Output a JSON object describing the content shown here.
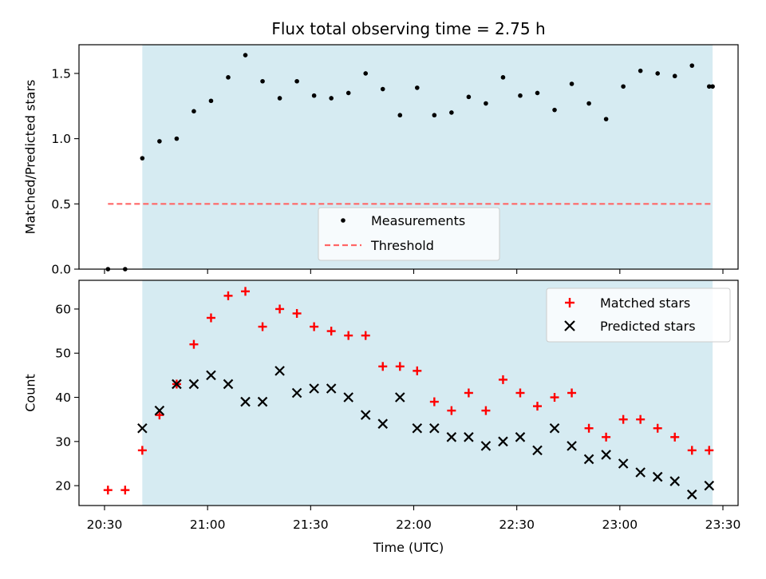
{
  "title": "Flux total observing time = 2.75 h",
  "colors": {
    "shade": "#add8e6",
    "measurement": "#000000",
    "threshold": "#ff6666",
    "matched": "#ff0000",
    "predicted": "#000000"
  },
  "chart_data": [
    {
      "type": "scatter",
      "name": "ratio-panel",
      "ylabel": "Matched/Predicted stars",
      "ylim": [
        0.0,
        1.72
      ],
      "xlim_minutes": [
        20.7,
        30.1
      ],
      "yticks": [
        {
          "v": 0.0,
          "label": "0.0"
        },
        {
          "v": 0.5,
          "label": "0.5"
        },
        {
          "v": 1.0,
          "label": "1.0"
        },
        {
          "v": 1.5,
          "label": "1.5"
        }
      ],
      "shaded_region": [
        "20:41",
        "23:27"
      ],
      "threshold": {
        "value": 0.5,
        "x": [
          "20:31",
          "23:27"
        ]
      },
      "legend": {
        "location": "lower-center",
        "entries": [
          {
            "label": "Measurements",
            "marker": "dot"
          },
          {
            "label": "Threshold",
            "marker": "dashed-line"
          }
        ]
      },
      "series": [
        {
          "name": "Measurements",
          "x": [
            "20:31",
            "20:36",
            "20:41",
            "20:46",
            "20:51",
            "20:56",
            "21:01",
            "21:06",
            "21:11",
            "21:16",
            "21:21",
            "21:26",
            "21:31",
            "21:36",
            "21:41",
            "21:46",
            "21:51",
            "21:56",
            "22:01",
            "22:06",
            "22:11",
            "22:16",
            "22:21",
            "22:26",
            "22:31",
            "22:36",
            "22:41",
            "22:46",
            "22:51",
            "22:56",
            "23:01",
            "23:06",
            "23:11",
            "23:16",
            "23:21",
            "23:26",
            "23:27"
          ],
          "y": [
            0.0,
            0.0,
            0.85,
            0.98,
            1.0,
            1.21,
            1.29,
            1.47,
            1.64,
            1.44,
            1.31,
            1.44,
            1.33,
            1.31,
            1.35,
            1.5,
            1.38,
            1.18,
            1.39,
            1.18,
            1.2,
            1.32,
            1.27,
            1.47,
            1.33,
            1.35,
            1.22,
            1.42,
            1.27,
            1.15,
            1.4,
            1.52,
            1.5,
            1.48,
            1.56,
            1.4,
            1.4
          ]
        }
      ]
    },
    {
      "type": "scatter",
      "name": "count-panel",
      "xlabel": "Time (UTC)",
      "ylabel": "Count",
      "ylim": [
        15.5,
        66.5
      ],
      "yticks": [
        {
          "v": 20,
          "label": "20"
        },
        {
          "v": 30,
          "label": "30"
        },
        {
          "v": 40,
          "label": "40"
        },
        {
          "v": 50,
          "label": "50"
        },
        {
          "v": 60,
          "label": "60"
        }
      ],
      "xticks": [
        {
          "t": "20:30",
          "label": "20:30"
        },
        {
          "t": "21:00",
          "label": "21:00"
        },
        {
          "t": "21:30",
          "label": "21:30"
        },
        {
          "t": "22:00",
          "label": "22:00"
        },
        {
          "t": "22:30",
          "label": "22:30"
        },
        {
          "t": "23:00",
          "label": "23:00"
        },
        {
          "t": "23:30",
          "label": "23:30"
        }
      ],
      "shaded_region": [
        "20:41",
        "23:27"
      ],
      "legend": {
        "location": "top-right",
        "entries": [
          {
            "label": "Matched stars",
            "marker": "plus"
          },
          {
            "label": "Predicted stars",
            "marker": "x"
          }
        ]
      },
      "series": [
        {
          "name": "Matched stars",
          "x": [
            "20:31",
            "20:36",
            "20:41",
            "20:46",
            "20:51",
            "20:56",
            "21:01",
            "21:06",
            "21:11",
            "21:16",
            "21:21",
            "21:26",
            "21:31",
            "21:36",
            "21:41",
            "21:46",
            "21:51",
            "21:56",
            "22:01",
            "22:06",
            "22:11",
            "22:16",
            "22:21",
            "22:26",
            "22:31",
            "22:36",
            "22:41",
            "22:46",
            "22:51",
            "22:56",
            "23:01",
            "23:06",
            "23:11",
            "23:16",
            "23:21",
            "23:26"
          ],
          "y": [
            19,
            19,
            28,
            36,
            43,
            52,
            58,
            63,
            64,
            56,
            60,
            59,
            56,
            55,
            54,
            54,
            47,
            47,
            46,
            39,
            37,
            41,
            37,
            44,
            41,
            38,
            40,
            41,
            33,
            31,
            35,
            35,
            33,
            31,
            28,
            28
          ]
        },
        {
          "name": "Predicted stars",
          "x": [
            "20:41",
            "20:46",
            "20:51",
            "20:56",
            "21:01",
            "21:06",
            "21:11",
            "21:16",
            "21:21",
            "21:26",
            "21:31",
            "21:36",
            "21:41",
            "21:46",
            "21:51",
            "21:56",
            "22:01",
            "22:06",
            "22:11",
            "22:16",
            "22:21",
            "22:26",
            "22:31",
            "22:36",
            "22:41",
            "22:46",
            "22:51",
            "22:56",
            "23:01",
            "23:06",
            "23:11",
            "23:16",
            "23:21",
            "23:26"
          ],
          "y": [
            33,
            37,
            43,
            43,
            45,
            43,
            39,
            39,
            46,
            41,
            42,
            42,
            40,
            36,
            34,
            40,
            33,
            33,
            31,
            31,
            29,
            30,
            31,
            28,
            33,
            29,
            26,
            27,
            25,
            23,
            22,
            21,
            18,
            20
          ]
        }
      ]
    }
  ]
}
